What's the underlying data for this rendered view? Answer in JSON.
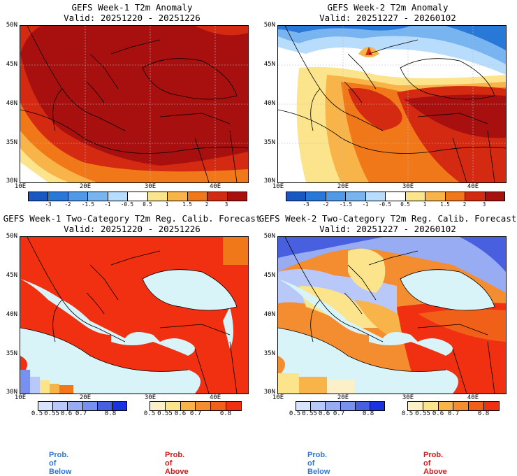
{
  "colors": {
    "ocean": "#d8f4f8",
    "deep_red": "#a81010",
    "red": "#d42a12",
    "orange": "#f07818",
    "light_orange": "#f8b448",
    "yellow": "#fce48c",
    "white": "#ffffff",
    "blue1": "#b8dcfc",
    "blue2": "#78b4f0",
    "blue3": "#2878d8",
    "prob_red": "#f03010"
  },
  "panels": [
    {
      "title": "GEFS Week-1 T2m Anomaly",
      "valid": "Valid: 20251220 - 20251226"
    },
    {
      "title": "GEFS Week-2 T2m Anomaly",
      "valid": "Valid: 20251227 - 20260102"
    },
    {
      "title": "GEFS Week-1 Two-Category T2m Reg. Calib. Forecast",
      "valid": "Valid: 20251220 - 20251226"
    },
    {
      "title": "GEFS Week-2 Two-Category T2m Reg. Calib. Forecast",
      "valid": "Valid: 20251227 - 20260102"
    }
  ],
  "axes": {
    "lat": [
      "50N",
      "45N",
      "40N",
      "35N",
      "30N"
    ],
    "lon": [
      "10E",
      "20E",
      "30E",
      "40E"
    ]
  },
  "anomaly_scale": {
    "ticks": [
      "-3",
      "-2",
      "-1.5",
      "-1",
      "-0.5",
      "0.5",
      "1",
      "1.5",
      "2",
      "3"
    ]
  },
  "prob_scale": {
    "ticks": [
      "0.5",
      "0.55",
      "0.6",
      "0.7",
      "0.8"
    ]
  },
  "legend": {
    "below": "Prob. of Below",
    "above": "Prob. of Above"
  }
}
